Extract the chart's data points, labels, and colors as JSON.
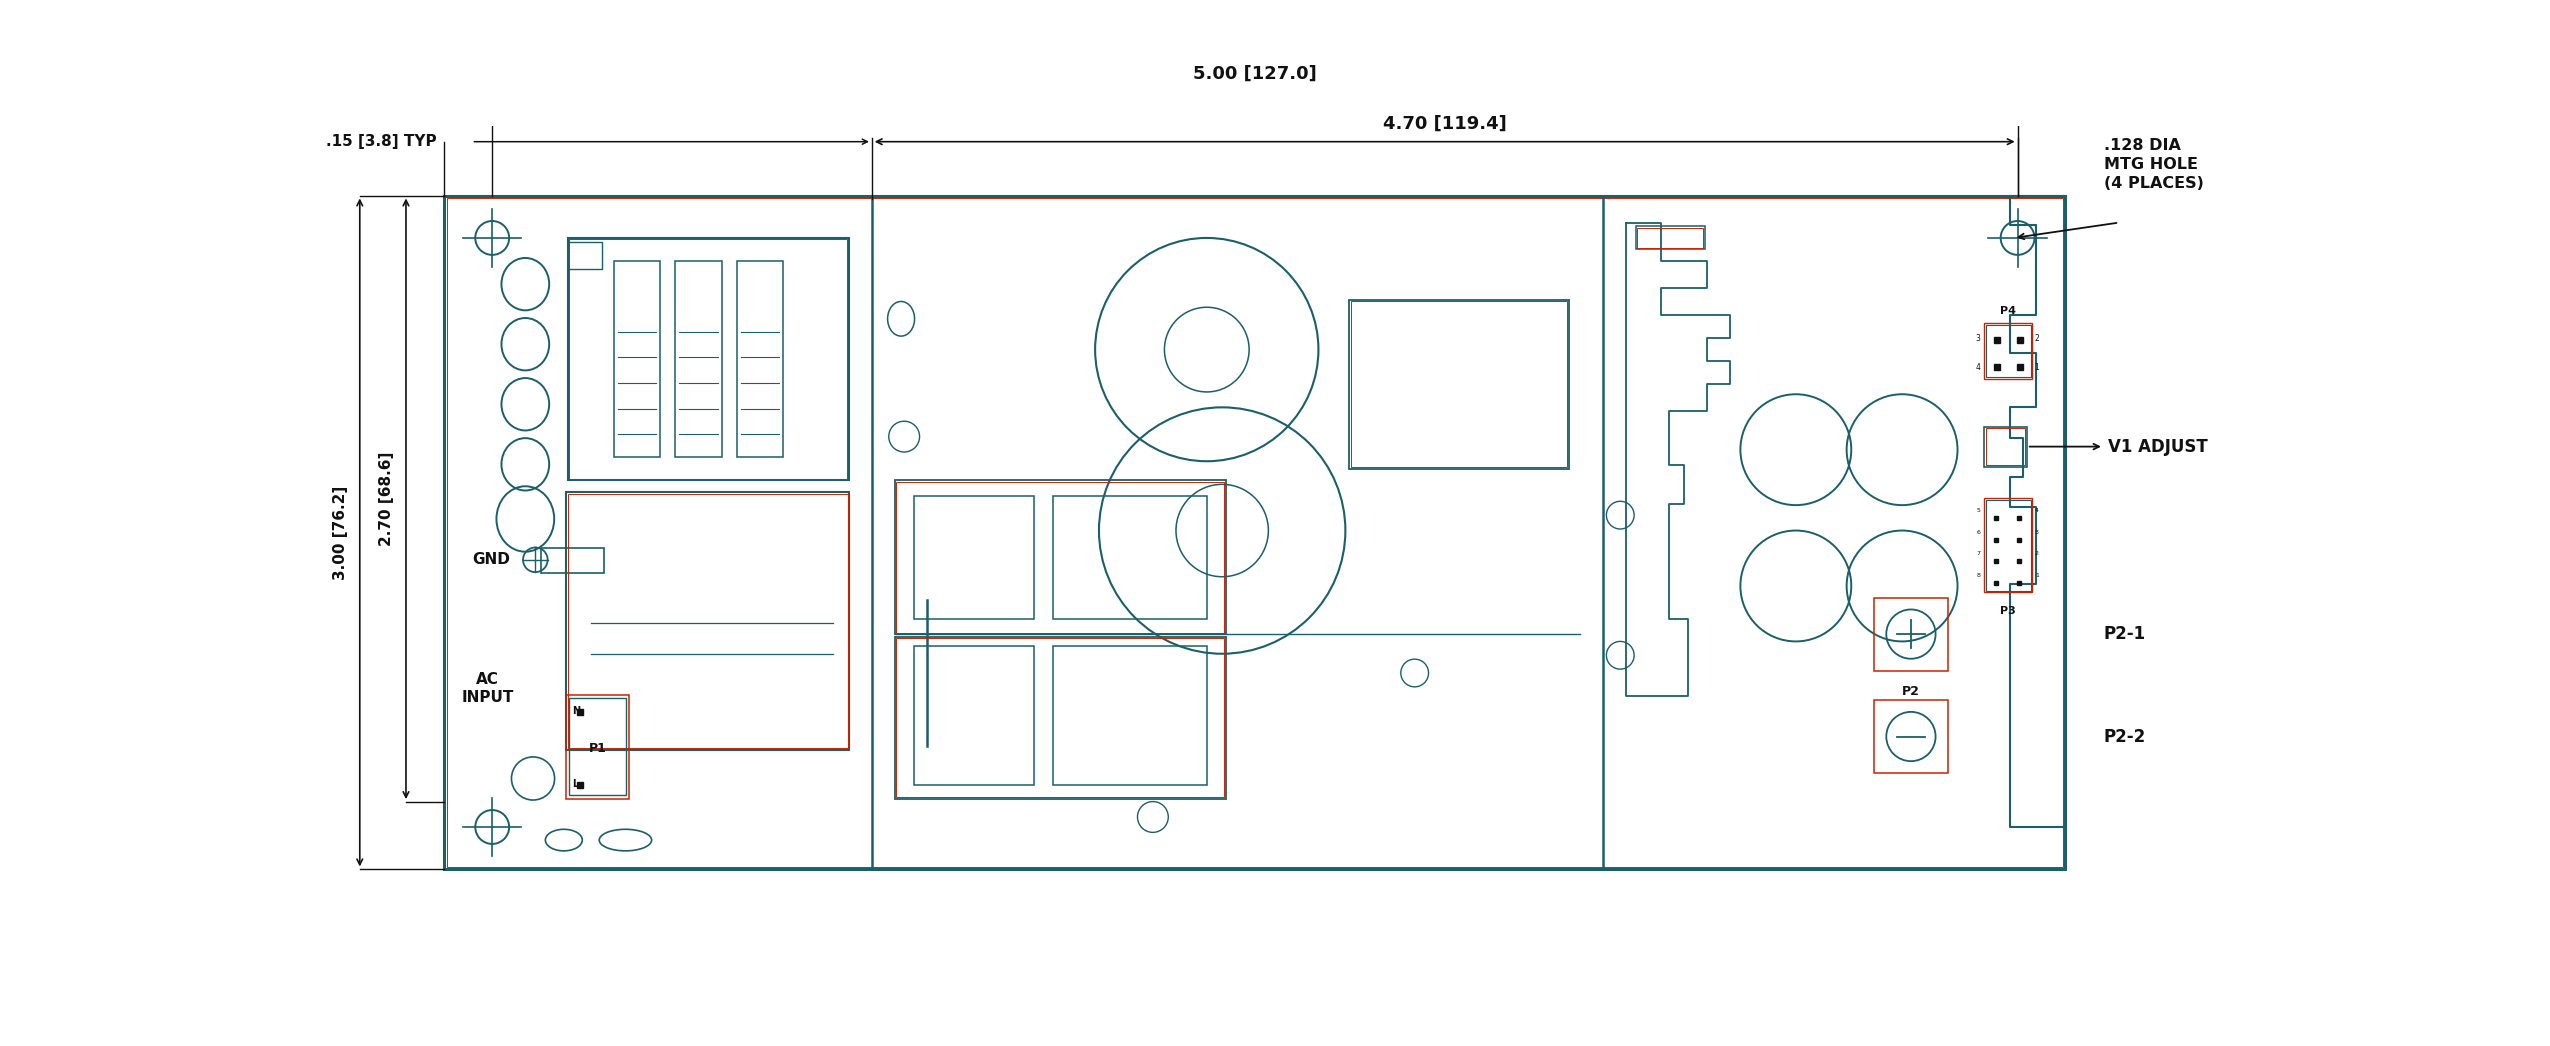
{
  "bg_color": "#ffffff",
  "teal": "#1a5f6a",
  "red": "#cc2200",
  "black": "#111111",
  "figsize": [
    25.5,
    10.46
  ],
  "dpi": 100,
  "dim_5in": "5.00 [127.0]",
  "dim_470": "4.70 [119.4]",
  "dim_015": ".15 [3.8] TYP",
  "dim_270": "2.70 [68.6]",
  "dim_300": "3.00 [76.2]",
  "lbl_gnd": "GND",
  "lbl_ac": "AC\nINPUT",
  "lbl_p1": "P1",
  "lbl_p2": "P2",
  "lbl_p21": "P2-1",
  "lbl_p22": "P2-2",
  "lbl_p3": "P3",
  "lbl_p4": "P4",
  "lbl_v1": "V1 ADJUST",
  "lbl_mtg": ".128 DIA\nMTG HOLE\n(4 PLACES)",
  "lbl_n": "N",
  "lbl_l": "L"
}
